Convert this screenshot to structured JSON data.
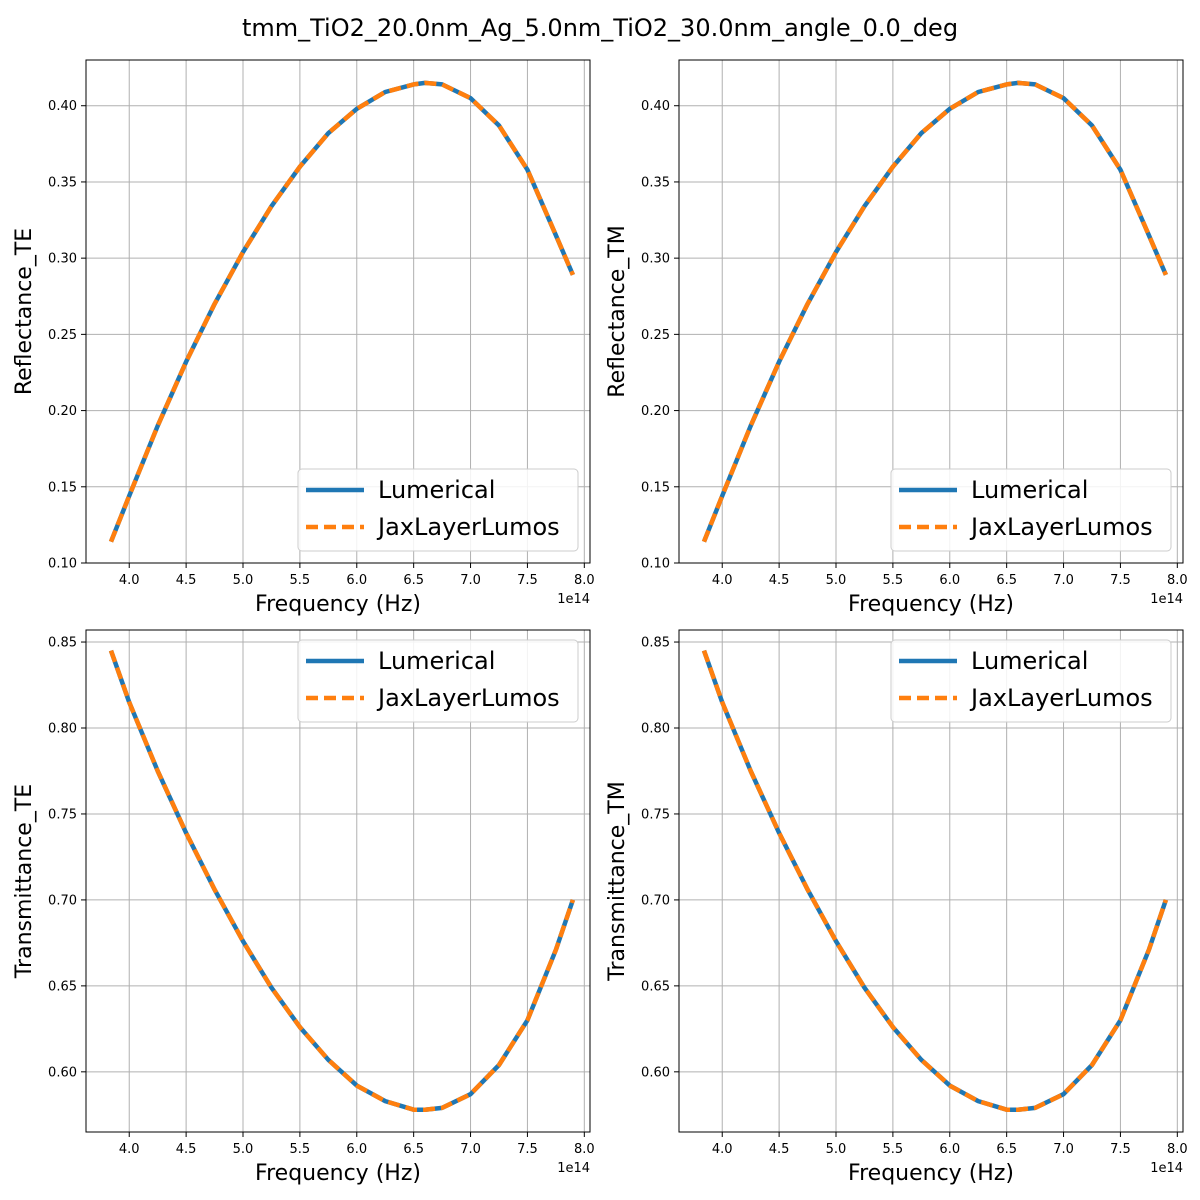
{
  "figure": {
    "title": "tmm_TiO2_20.0nm_Ag_5.0nm_TiO2_30.0nm_angle_0.0_deg"
  },
  "colors": {
    "lumerical": "#1f77b4",
    "jax": "#ff7f0e",
    "grid": "#b0b0b0"
  },
  "chart_data": [
    {
      "type": "line",
      "xlabel": "Frequency (Hz)",
      "ylabel": "Reflectance_TE",
      "x_multiplier_label": "1e14",
      "xlim": [
        3.62,
        8.05
      ],
      "ylim": [
        0.1,
        0.43
      ],
      "xticks": [
        "4.0",
        "4.5",
        "5.0",
        "5.5",
        "6.0",
        "6.5",
        "7.0",
        "7.5",
        "8.0"
      ],
      "yticks": [
        "0.10",
        "0.15",
        "0.20",
        "0.25",
        "0.30",
        "0.35",
        "0.40"
      ],
      "legend": "lower-right",
      "grid": true,
      "x": [
        3.84,
        4.0,
        4.25,
        4.5,
        4.75,
        5.0,
        5.25,
        5.5,
        5.75,
        6.0,
        6.25,
        6.5,
        6.6,
        6.75,
        7.0,
        7.25,
        7.5,
        7.75,
        7.9
      ],
      "series": [
        {
          "name": "Lumerical",
          "values": [
            0.114,
            0.144,
            0.19,
            0.232,
            0.27,
            0.304,
            0.334,
            0.36,
            0.382,
            0.398,
            0.409,
            0.414,
            0.415,
            0.414,
            0.405,
            0.387,
            0.358,
            0.315,
            0.289
          ]
        },
        {
          "name": "JaxLayerLumos",
          "values": [
            0.114,
            0.144,
            0.19,
            0.232,
            0.27,
            0.304,
            0.334,
            0.36,
            0.382,
            0.398,
            0.409,
            0.414,
            0.415,
            0.414,
            0.405,
            0.387,
            0.358,
            0.315,
            0.289
          ]
        }
      ]
    },
    {
      "type": "line",
      "xlabel": "Frequency (Hz)",
      "ylabel": "Reflectance_TM",
      "x_multiplier_label": "1e14",
      "xlim": [
        3.62,
        8.05
      ],
      "ylim": [
        0.1,
        0.43
      ],
      "xticks": [
        "4.0",
        "4.5",
        "5.0",
        "5.5",
        "6.0",
        "6.5",
        "7.0",
        "7.5",
        "8.0"
      ],
      "yticks": [
        "0.10",
        "0.15",
        "0.20",
        "0.25",
        "0.30",
        "0.35",
        "0.40"
      ],
      "legend": "lower-right",
      "grid": true,
      "x": [
        3.84,
        4.0,
        4.25,
        4.5,
        4.75,
        5.0,
        5.25,
        5.5,
        5.75,
        6.0,
        6.25,
        6.5,
        6.6,
        6.75,
        7.0,
        7.25,
        7.5,
        7.75,
        7.9
      ],
      "series": [
        {
          "name": "Lumerical",
          "values": [
            0.114,
            0.144,
            0.19,
            0.232,
            0.27,
            0.304,
            0.334,
            0.36,
            0.382,
            0.398,
            0.409,
            0.414,
            0.415,
            0.414,
            0.405,
            0.387,
            0.358,
            0.315,
            0.289
          ]
        },
        {
          "name": "JaxLayerLumos",
          "values": [
            0.114,
            0.144,
            0.19,
            0.232,
            0.27,
            0.304,
            0.334,
            0.36,
            0.382,
            0.398,
            0.409,
            0.414,
            0.415,
            0.414,
            0.405,
            0.387,
            0.358,
            0.315,
            0.289
          ]
        }
      ]
    },
    {
      "type": "line",
      "xlabel": "Frequency (Hz)",
      "ylabel": "Transmittance_TE",
      "x_multiplier_label": "1e14",
      "xlim": [
        3.62,
        8.05
      ],
      "ylim": [
        0.565,
        0.857
      ],
      "xticks": [
        "4.0",
        "4.5",
        "5.0",
        "5.5",
        "6.0",
        "6.5",
        "7.0",
        "7.5",
        "8.0"
      ],
      "yticks": [
        "0.60",
        "0.65",
        "0.70",
        "0.75",
        "0.80",
        "0.85"
      ],
      "legend": "upper-right",
      "grid": true,
      "x": [
        3.84,
        4.0,
        4.25,
        4.5,
        4.75,
        5.0,
        5.25,
        5.5,
        5.75,
        6.0,
        6.25,
        6.5,
        6.6,
        6.75,
        7.0,
        7.25,
        7.5,
        7.75,
        7.9
      ],
      "series": [
        {
          "name": "Lumerical",
          "values": [
            0.845,
            0.815,
            0.775,
            0.739,
            0.706,
            0.676,
            0.649,
            0.626,
            0.607,
            0.592,
            0.583,
            0.578,
            0.578,
            0.579,
            0.587,
            0.604,
            0.63,
            0.671,
            0.7
          ]
        },
        {
          "name": "JaxLayerLumos",
          "values": [
            0.845,
            0.815,
            0.775,
            0.739,
            0.706,
            0.676,
            0.649,
            0.626,
            0.607,
            0.592,
            0.583,
            0.578,
            0.578,
            0.579,
            0.587,
            0.604,
            0.63,
            0.671,
            0.7
          ]
        }
      ]
    },
    {
      "type": "line",
      "xlabel": "Frequency (Hz)",
      "ylabel": "Transmittance_TM",
      "x_multiplier_label": "1e14",
      "xlim": [
        3.62,
        8.05
      ],
      "ylim": [
        0.565,
        0.857
      ],
      "xticks": [
        "4.0",
        "4.5",
        "5.0",
        "5.5",
        "6.0",
        "6.5",
        "7.0",
        "7.5",
        "8.0"
      ],
      "yticks": [
        "0.60",
        "0.65",
        "0.70",
        "0.75",
        "0.80",
        "0.85"
      ],
      "legend": "upper-right",
      "grid": true,
      "x": [
        3.84,
        4.0,
        4.25,
        4.5,
        4.75,
        5.0,
        5.25,
        5.5,
        5.75,
        6.0,
        6.25,
        6.5,
        6.6,
        6.75,
        7.0,
        7.25,
        7.5,
        7.75,
        7.9
      ],
      "series": [
        {
          "name": "Lumerical",
          "values": [
            0.845,
            0.815,
            0.775,
            0.739,
            0.706,
            0.676,
            0.649,
            0.626,
            0.607,
            0.592,
            0.583,
            0.578,
            0.578,
            0.579,
            0.587,
            0.604,
            0.63,
            0.671,
            0.7
          ]
        },
        {
          "name": "JaxLayerLumos",
          "values": [
            0.845,
            0.815,
            0.775,
            0.739,
            0.706,
            0.676,
            0.649,
            0.626,
            0.607,
            0.592,
            0.583,
            0.578,
            0.578,
            0.579,
            0.587,
            0.604,
            0.63,
            0.671,
            0.7
          ]
        }
      ]
    }
  ]
}
